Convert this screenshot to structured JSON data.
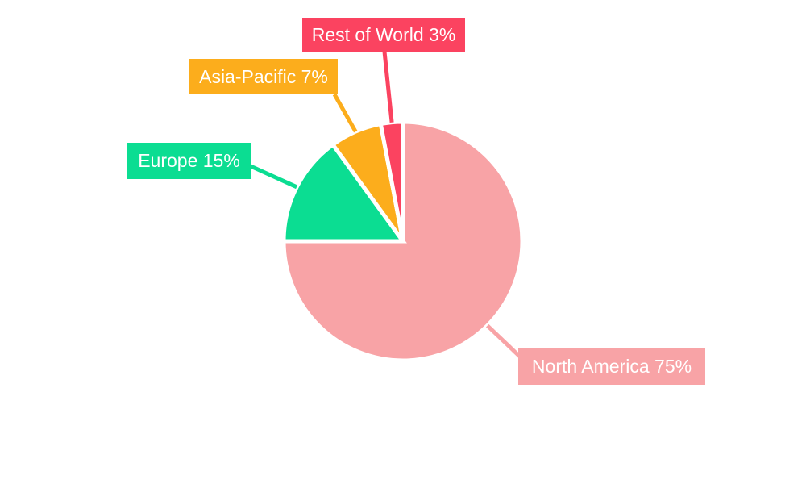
{
  "chart_data": {
    "type": "pie",
    "title": "",
    "categories": [
      "North America",
      "Europe",
      "Asia-Pacific",
      "Rest of World"
    ],
    "values": [
      75,
      15,
      7,
      3
    ],
    "unit": "%",
    "colors": [
      "#F8A3A6",
      "#0BDD92",
      "#FCAD1C",
      "#FB4360"
    ],
    "label_text_color": "#FFFFFF",
    "background": "#FFFFFF",
    "direction": "clockwise",
    "start_angle_deg": 0,
    "center": [
      500,
      299
    ],
    "radius": 148,
    "slice_gap_color": "#FFFFFF",
    "slice_gap_width": 5,
    "leader_line_width": 5,
    "legend_position": "callout-labels",
    "grid": false,
    "labels": [
      {
        "text": "North America 75%",
        "line_end": [
          646,
          443
        ]
      },
      {
        "text": "Europe 15%",
        "line_end": [
          311,
          206
        ]
      },
      {
        "text": "Asia-Pacific 7%",
        "line_end": [
          415,
          117
        ]
      },
      {
        "text": "Rest of World 3%",
        "line_end": [
          477,
          64
        ]
      }
    ]
  }
}
